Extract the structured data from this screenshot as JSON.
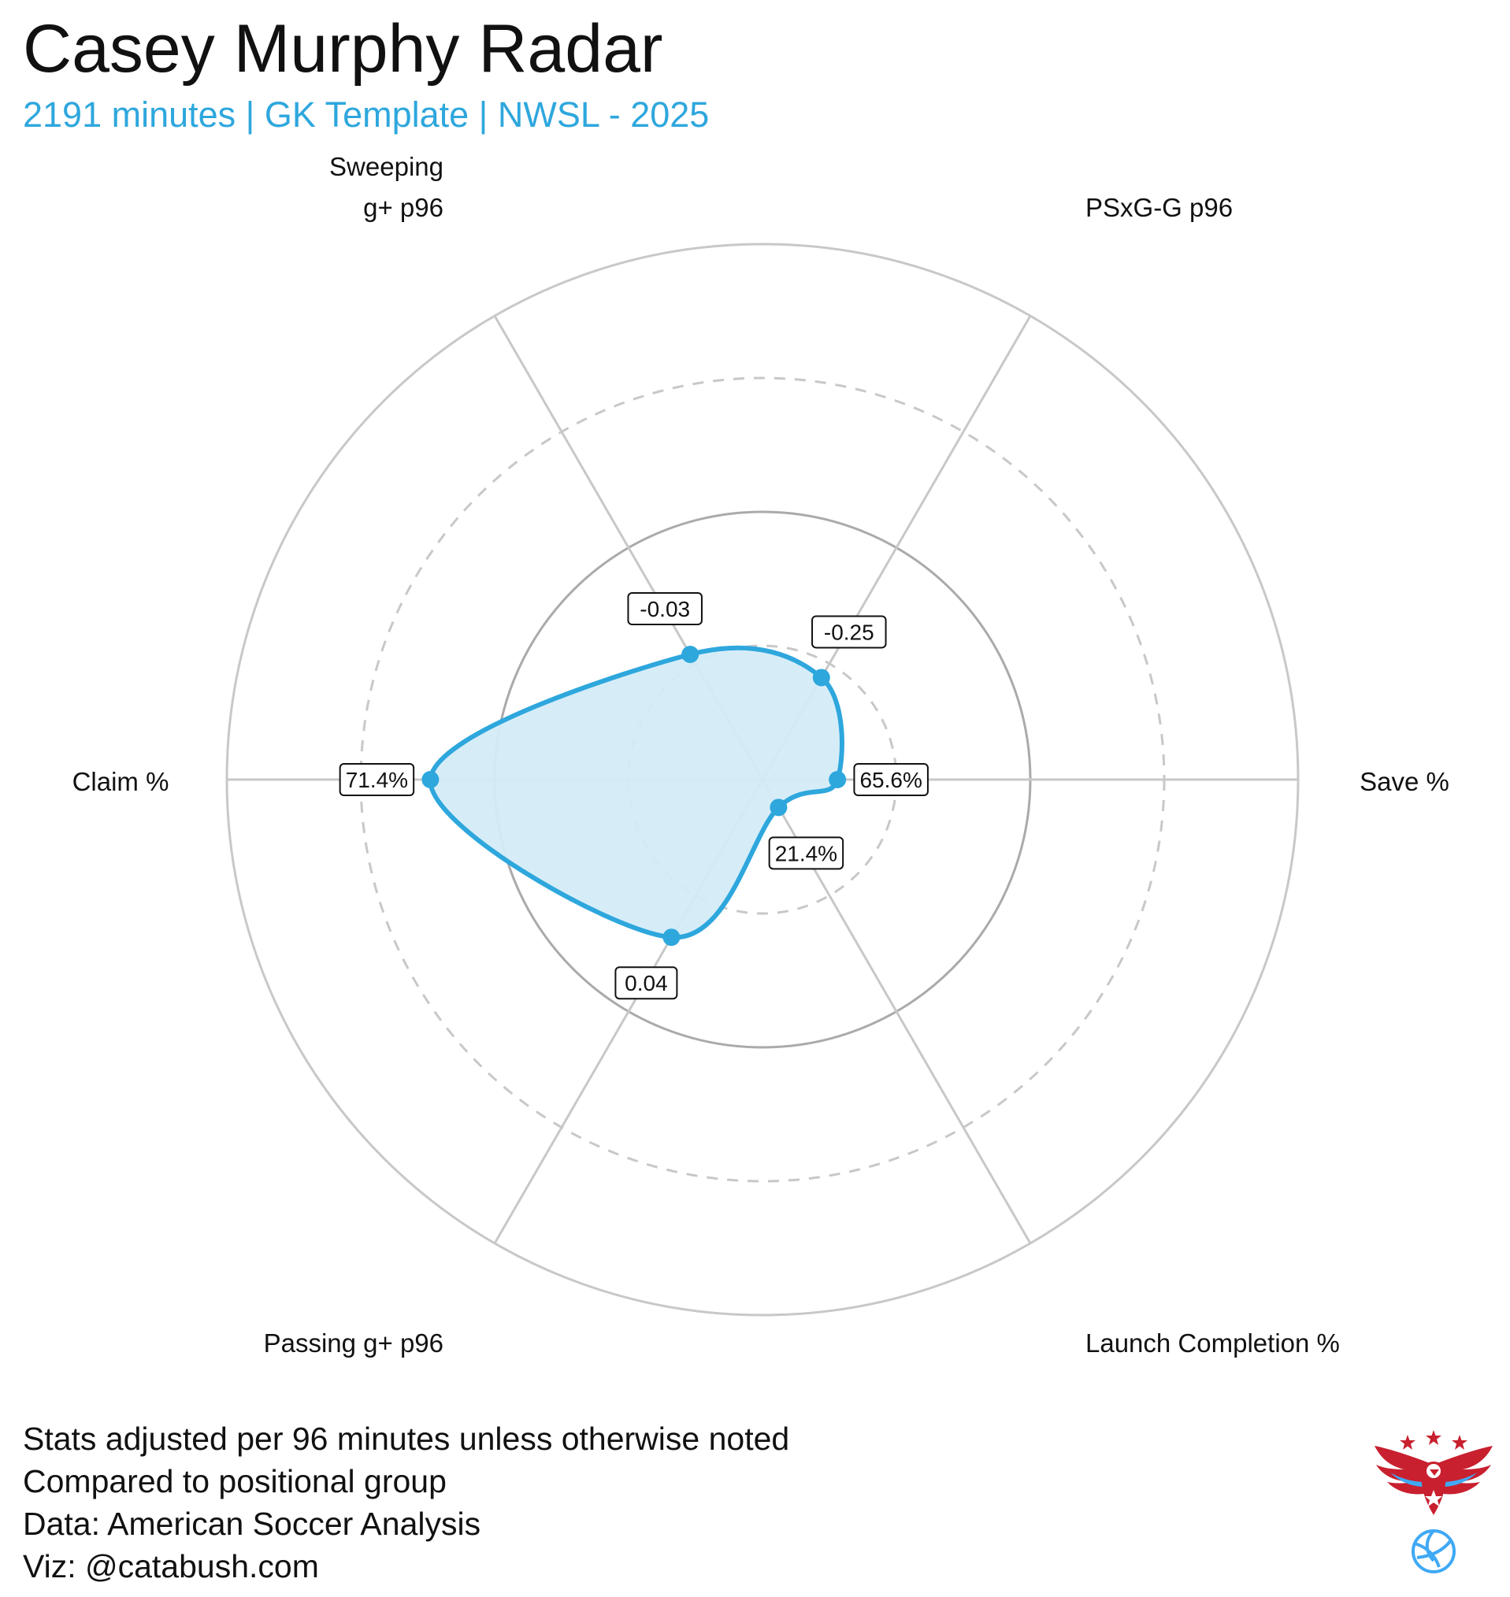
{
  "title": "Casey Murphy Radar",
  "subtitle": "2191 minutes | GK Template | NWSL - 2025",
  "colors": {
    "accent": "#2ea7dd",
    "fill": "#d4ecf8",
    "ring": "#c8c8c8",
    "ring_mid": "#aaaaaa",
    "logo_red": "#c8202f",
    "logo_blue": "#3fa9f5"
  },
  "chart_data": {
    "type": "radar",
    "scale": "percentile",
    "range": [
      0,
      100
    ],
    "rings": [
      25,
      50,
      75,
      100
    ],
    "axes": [
      {
        "label_lines": [
          "Save %"
        ],
        "label": "Save %",
        "value": 14,
        "display": "65.6%"
      },
      {
        "label_lines": [
          "PSxG-G p96"
        ],
        "label": "PSxG-G p96",
        "value": 22,
        "display": "-0.25"
      },
      {
        "label_lines": [
          "Sweeping",
          "g+ p96"
        ],
        "label": "Sweeping g+ p96",
        "value": 27,
        "display": "-0.03"
      },
      {
        "label_lines": [
          "Claim %"
        ],
        "label": "Claim %",
        "value": 62,
        "display": "71.4%"
      },
      {
        "label_lines": [
          "Passing g+ p96"
        ],
        "label": "Passing g+ p96",
        "value": 34,
        "display": "0.04"
      },
      {
        "label_lines": [
          "Launch Completion %"
        ],
        "label": "Launch Completion %",
        "value": 6,
        "display": "21.4%"
      }
    ]
  },
  "footer": {
    "lines": [
      "Stats adjusted per 96 minutes unless otherwise noted",
      "Compared to positional group",
      "Data: American Soccer Analysis",
      "Viz: @catabush.com"
    ]
  },
  "logo": {
    "icon": "eagle-soccer-ball-logo"
  }
}
